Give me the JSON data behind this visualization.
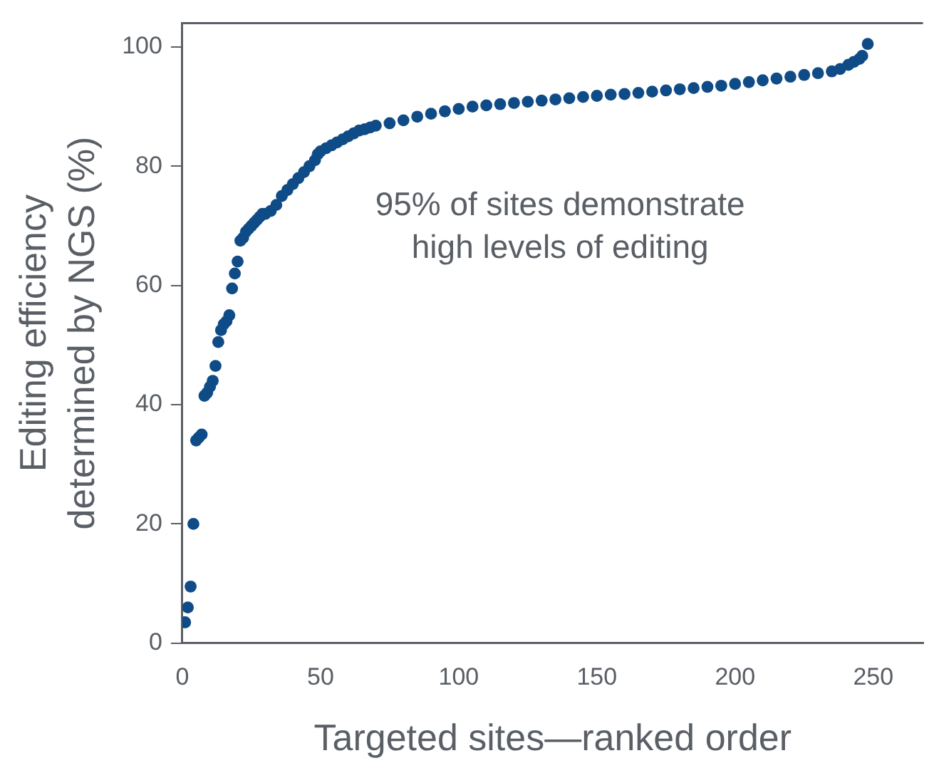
{
  "chart_data": {
    "type": "scatter",
    "xlabel": "Targeted sites—ranked order",
    "ylabel": "Editing efficiency\ndetermined by NGS (%)",
    "annotations": [
      "95% of sites demonstrate\nhigh levels of editing"
    ],
    "xlim": [
      0,
      268
    ],
    "ylim": [
      0,
      104
    ],
    "xticks": [
      0,
      50,
      100,
      150,
      200,
      250
    ],
    "yticks": [
      0,
      20,
      40,
      60,
      80,
      100
    ],
    "grid": false,
    "legend": false,
    "marker": "circle",
    "series": [
      {
        "color": "#0f4c87",
        "x": [
          1,
          2,
          3,
          4,
          5,
          6,
          7,
          8,
          9,
          10,
          11,
          12,
          13,
          14,
          15,
          16,
          17,
          18,
          19,
          20,
          21,
          22,
          23,
          24,
          25,
          26,
          27,
          28,
          29,
          30,
          32,
          34,
          36,
          38,
          40,
          42,
          44,
          46,
          48,
          49,
          50,
          52,
          54,
          56,
          58,
          60,
          62,
          64,
          66,
          68,
          70,
          75,
          80,
          85,
          90,
          95,
          100,
          105,
          110,
          115,
          120,
          125,
          130,
          135,
          140,
          145,
          150,
          155,
          160,
          165,
          170,
          175,
          180,
          185,
          190,
          195,
          200,
          205,
          210,
          215,
          220,
          225,
          230,
          235,
          238,
          241,
          243,
          245,
          246,
          248
        ],
        "values": [
          3.5,
          6,
          9.5,
          20,
          34,
          34.5,
          35,
          41.5,
          42,
          43,
          44,
          46.5,
          50.5,
          52.5,
          53.5,
          54,
          55,
          59.5,
          62,
          64,
          67.5,
          68,
          69,
          69.5,
          70,
          70.5,
          71,
          71.5,
          72,
          72,
          72.5,
          73.5,
          75,
          76,
          77,
          78,
          79,
          80,
          81,
          82,
          82.5,
          83,
          83.5,
          84,
          84.5,
          85,
          85.5,
          86,
          86.2,
          86.5,
          86.8,
          87.2,
          87.7,
          88.3,
          88.8,
          89.2,
          89.6,
          90,
          90.2,
          90.4,
          90.6,
          90.8,
          91,
          91.2,
          91.4,
          91.6,
          91.8,
          92,
          92.1,
          92.3,
          92.5,
          92.7,
          92.9,
          93.1,
          93.3,
          93.5,
          93.8,
          94.1,
          94.4,
          94.7,
          95,
          95.3,
          95.6,
          95.9,
          96.3,
          97,
          97.5,
          98,
          98.5,
          100.5
        ]
      }
    ]
  }
}
